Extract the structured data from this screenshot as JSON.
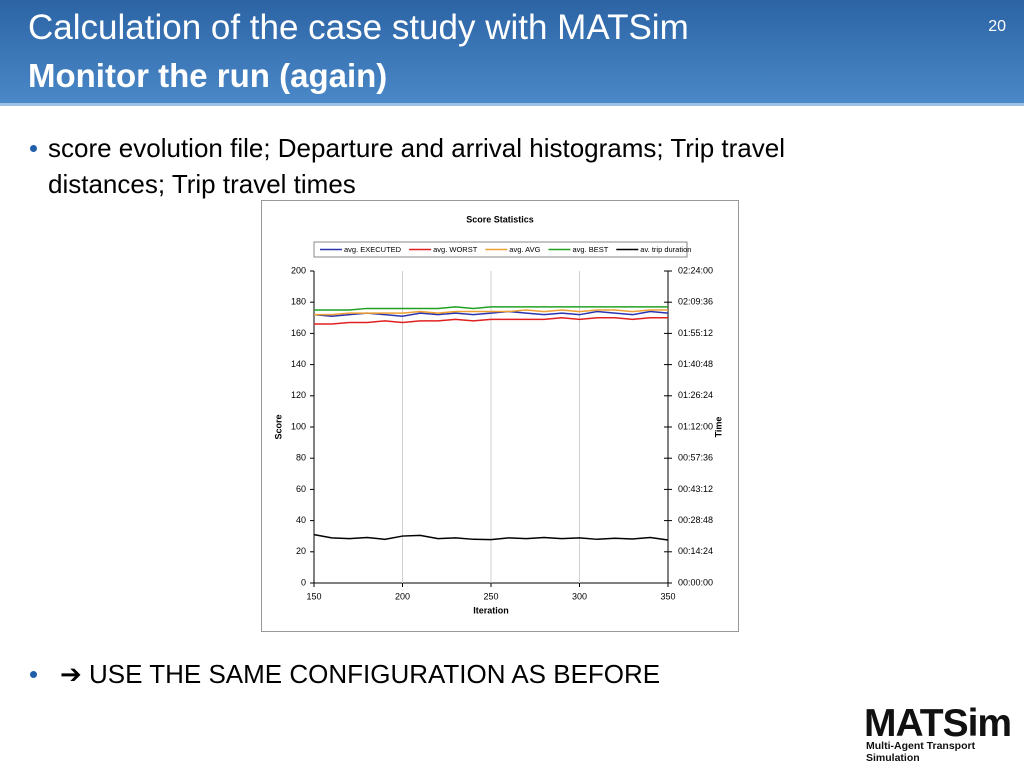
{
  "header": {
    "title": "Calculation of the case study with MATSim",
    "subtitle": "Monitor the run (again)",
    "page_number": 20
  },
  "bullets": [
    "score evolution file; Departure and arrival histograms; Trip travel distances; Trip travel times",
    "➔ USE THE SAME CONFIGURATION AS BEFORE"
  ],
  "logo": {
    "name": "MATSim",
    "tagline": "Multi-Agent Transport Simulation"
  },
  "chart_data": {
    "type": "line",
    "title": "Score Statistics",
    "x_label": "Iteration",
    "y_label": "Score",
    "y2_label": "Time",
    "x": [
      150,
      160,
      170,
      180,
      190,
      200,
      210,
      220,
      230,
      240,
      250,
      260,
      270,
      280,
      290,
      300,
      310,
      320,
      330,
      340,
      350
    ],
    "series": [
      {
        "name": "avg. EXECUTED",
        "color": "#2b35b0",
        "values": [
          172,
          171,
          172,
          173,
          172,
          171,
          173,
          172,
          173,
          172,
          173,
          174,
          173,
          172,
          173,
          172,
          174,
          173,
          172,
          174,
          173
        ]
      },
      {
        "name": "avg. WORST",
        "color": "#e02020",
        "values": [
          166,
          166,
          167,
          167,
          168,
          167,
          168,
          168,
          169,
          168,
          169,
          169,
          169,
          169,
          170,
          169,
          170,
          170,
          169,
          170,
          170
        ]
      },
      {
        "name": "avg. AVG",
        "color": "#f0a030",
        "values": [
          172,
          172,
          173,
          173,
          173,
          173,
          174,
          173,
          174,
          174,
          174,
          174,
          175,
          174,
          175,
          174,
          175,
          175,
          174,
          175,
          175
        ]
      },
      {
        "name": "avg. BEST",
        "color": "#20a020",
        "values": [
          175,
          175,
          175,
          176,
          176,
          176,
          176,
          176,
          177,
          176,
          177,
          177,
          177,
          177,
          177,
          177,
          177,
          177,
          177,
          177,
          177
        ]
      },
      {
        "name": "av. trip duration",
        "color": "#000000",
        "axis": "y2",
        "values": [
          1340,
          1250,
          1230,
          1260,
          1210,
          1300,
          1320,
          1230,
          1250,
          1210,
          1200,
          1250,
          1230,
          1260,
          1230,
          1250,
          1210,
          1240,
          1220,
          1260,
          1190
        ]
      }
    ],
    "xlim": [
      150,
      350
    ],
    "xticks": [
      150,
      200,
      250,
      300,
      350
    ],
    "ylim": [
      0,
      200
    ],
    "yticks": [
      0,
      20,
      40,
      60,
      80,
      100,
      120,
      140,
      160,
      180,
      200
    ],
    "y2lim": [
      0,
      8640
    ],
    "y2ticks": [
      {
        "value": 0,
        "label": "00:00:00"
      },
      {
        "value": 864,
        "label": "00:14:24"
      },
      {
        "value": 1728,
        "label": "00:28:48"
      },
      {
        "value": 2592,
        "label": "00:43:12"
      },
      {
        "value": 3456,
        "label": "00:57:36"
      },
      {
        "value": 4320,
        "label": "01:12:00"
      },
      {
        "value": 5184,
        "label": "01:26:24"
      },
      {
        "value": 6048,
        "label": "01:40:48"
      },
      {
        "value": 6912,
        "label": "01:55:12"
      },
      {
        "value": 7776,
        "label": "02:09:36"
      },
      {
        "value": 8640,
        "label": "02:24:00"
      }
    ],
    "xgrid": true,
    "legend": "top"
  }
}
